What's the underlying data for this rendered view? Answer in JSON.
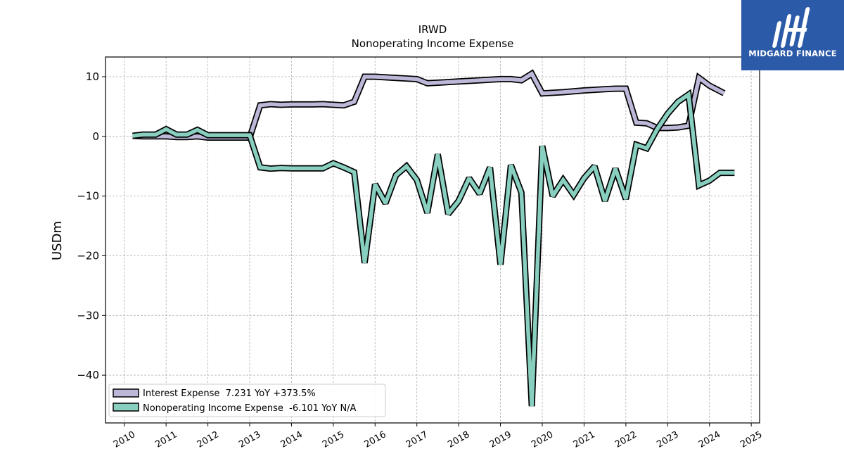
{
  "logo": {
    "text": "MIDGARD FINANCE",
    "bg_color": "#2b5aa8"
  },
  "chart_data": {
    "type": "line",
    "title": "IRWD",
    "subtitle": "Nonoperating Income Expense",
    "ylabel": "USDm",
    "xlabel": "",
    "xlim": [
      2009.55,
      2025.2
    ],
    "ylim": [
      -48,
      13.3
    ],
    "yticks": [
      10,
      0,
      -10,
      -20,
      -30,
      -40
    ],
    "ytick_labels": [
      "10",
      "0",
      "−10",
      "−20",
      "−30",
      "−40"
    ],
    "xticks": [
      2010,
      2011,
      2012,
      2013,
      2014,
      2015,
      2016,
      2017,
      2018,
      2019,
      2020,
      2021,
      2022,
      2023,
      2024,
      2025
    ],
    "xtick_labels": [
      "2010",
      "2011",
      "2012",
      "2013",
      "2014",
      "2015",
      "2016",
      "2017",
      "2018",
      "2019",
      "2020",
      "2021",
      "2022",
      "2023",
      "2024",
      "2025"
    ],
    "grid": true,
    "legend_position": "lower-left",
    "series": [
      {
        "name": "Interest Expense",
        "legend_label": "Interest Expense  7.231 YoY +373.5%",
        "color": "#bcb8d8",
        "points": [
          [
            2010.2,
            0.1
          ],
          [
            2010.45,
            0.0
          ],
          [
            2010.7,
            0.0
          ],
          [
            2011.0,
            0.0
          ],
          [
            2011.25,
            -0.1
          ],
          [
            2011.5,
            -0.1
          ],
          [
            2011.75,
            0.0
          ],
          [
            2012.0,
            -0.2
          ],
          [
            2012.5,
            -0.2
          ],
          [
            2013.0,
            -0.2
          ],
          [
            2013.25,
            5.2
          ],
          [
            2013.5,
            5.4
          ],
          [
            2013.75,
            5.3
          ],
          [
            2014.0,
            5.35
          ],
          [
            2014.5,
            5.35
          ],
          [
            2014.75,
            5.4
          ],
          [
            2015.0,
            5.3
          ],
          [
            2015.25,
            5.2
          ],
          [
            2015.5,
            5.8
          ],
          [
            2015.75,
            10.0
          ],
          [
            2016.0,
            10.0
          ],
          [
            2016.5,
            9.8
          ],
          [
            2017.0,
            9.6
          ],
          [
            2017.25,
            8.9
          ],
          [
            2017.5,
            9.0
          ],
          [
            2018.0,
            9.2
          ],
          [
            2018.5,
            9.4
          ],
          [
            2019.0,
            9.6
          ],
          [
            2019.25,
            9.6
          ],
          [
            2019.5,
            9.4
          ],
          [
            2019.75,
            10.5
          ],
          [
            2020.0,
            7.2
          ],
          [
            2020.5,
            7.4
          ],
          [
            2021.0,
            7.7
          ],
          [
            2021.5,
            7.9
          ],
          [
            2021.75,
            8.0
          ],
          [
            2022.0,
            8.0
          ],
          [
            2022.25,
            2.3
          ],
          [
            2022.5,
            2.2
          ],
          [
            2022.75,
            1.4
          ],
          [
            2023.0,
            1.4
          ],
          [
            2023.25,
            1.5
          ],
          [
            2023.5,
            1.8
          ],
          [
            2023.75,
            9.8
          ],
          [
            2024.0,
            8.5
          ],
          [
            2024.35,
            7.231
          ]
        ]
      },
      {
        "name": "Nonoperating Income Expense",
        "legend_label": "Nonoperating Income Expense  -6.101 YoY N/A",
        "color": "#88cfc0",
        "points": [
          [
            2010.2,
            0.1
          ],
          [
            2010.45,
            0.3
          ],
          [
            2010.75,
            0.3
          ],
          [
            2011.0,
            1.2
          ],
          [
            2011.25,
            0.3
          ],
          [
            2011.5,
            0.3
          ],
          [
            2011.75,
            1.1
          ],
          [
            2012.0,
            0.2
          ],
          [
            2012.5,
            0.2
          ],
          [
            2013.0,
            0.2
          ],
          [
            2013.25,
            -5.2
          ],
          [
            2013.5,
            -5.4
          ],
          [
            2013.75,
            -5.3
          ],
          [
            2014.0,
            -5.35
          ],
          [
            2014.5,
            -5.35
          ],
          [
            2014.75,
            -5.35
          ],
          [
            2015.0,
            -4.5
          ],
          [
            2015.25,
            -5.2
          ],
          [
            2015.5,
            -6.0
          ],
          [
            2015.75,
            -21.2
          ],
          [
            2016.0,
            -8.0
          ],
          [
            2016.25,
            -11.2
          ],
          [
            2016.5,
            -6.5
          ],
          [
            2016.75,
            -5.0
          ],
          [
            2017.0,
            -7.3
          ],
          [
            2017.25,
            -12.8
          ],
          [
            2017.5,
            -3.0
          ],
          [
            2017.75,
            -13.0
          ],
          [
            2018.0,
            -10.8
          ],
          [
            2018.25,
            -7.0
          ],
          [
            2018.5,
            -9.6
          ],
          [
            2018.75,
            -5.2
          ],
          [
            2019.0,
            -21.5
          ],
          [
            2019.25,
            -4.8
          ],
          [
            2019.5,
            -9.4
          ],
          [
            2019.75,
            -45.2
          ],
          [
            2020.0,
            -1.6
          ],
          [
            2020.25,
            -10.0
          ],
          [
            2020.5,
            -7.3
          ],
          [
            2020.75,
            -9.8
          ],
          [
            2021.0,
            -7.0
          ],
          [
            2021.25,
            -5.0
          ],
          [
            2021.5,
            -10.8
          ],
          [
            2021.75,
            -5.4
          ],
          [
            2022.0,
            -10.5
          ],
          [
            2022.25,
            -1.4
          ],
          [
            2022.5,
            -2.0
          ],
          [
            2022.75,
            1.2
          ],
          [
            2023.0,
            3.8
          ],
          [
            2023.25,
            5.8
          ],
          [
            2023.5,
            7.0
          ],
          [
            2023.75,
            -8.2
          ],
          [
            2024.0,
            -7.4
          ],
          [
            2024.25,
            -6.1
          ],
          [
            2024.6,
            -6.101
          ]
        ]
      }
    ]
  }
}
